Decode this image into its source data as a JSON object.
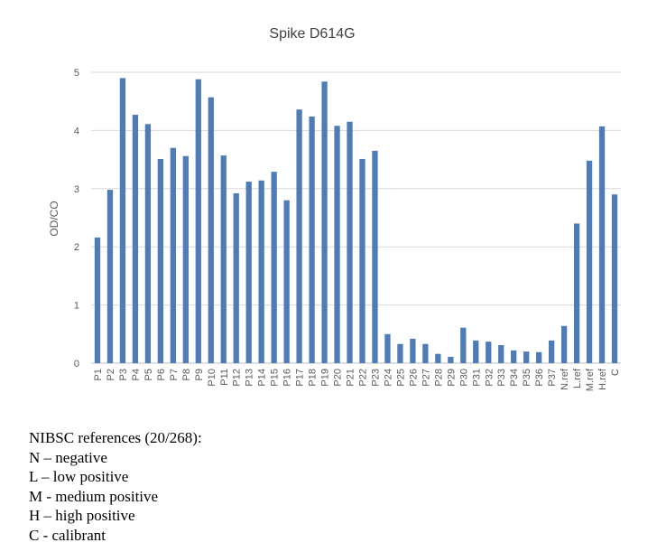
{
  "chart_data": {
    "type": "bar",
    "title": "Spike D614G",
    "xlabel": "",
    "ylabel": "OD/CO",
    "ylim": [
      0,
      5
    ],
    "yticks": [
      0,
      1,
      2,
      3,
      4,
      5
    ],
    "grid": true,
    "bar_color": "#4f7cb6",
    "categories": [
      "P1",
      "P2",
      "P3",
      "P4",
      "P5",
      "P6",
      "P7",
      "P8",
      "P9",
      "P10",
      "P11",
      "P12",
      "P13",
      "P14",
      "P15",
      "P16",
      "P17",
      "P18",
      "P19",
      "P20",
      "P21",
      "P22",
      "P23",
      "P24",
      "P25",
      "P26",
      "P27",
      "P28",
      "P29",
      "P30",
      "P31",
      "P32",
      "P33",
      "P34",
      "P35",
      "P36",
      "P37",
      "N.ref",
      "L.ref",
      "M.ref",
      "H.ref",
      "C"
    ],
    "values": [
      2.16,
      2.98,
      4.9,
      4.27,
      4.11,
      3.51,
      3.7,
      3.56,
      4.88,
      4.57,
      3.57,
      2.92,
      3.12,
      3.14,
      3.29,
      2.8,
      4.36,
      4.24,
      4.84,
      4.08,
      4.15,
      3.51,
      3.65,
      0.5,
      0.33,
      0.42,
      0.33,
      0.16,
      0.11,
      0.61,
      0.39,
      0.37,
      0.31,
      0.22,
      0.2,
      0.19,
      0.39,
      0.64,
      2.4,
      3.48,
      4.07,
      2.9
    ]
  },
  "notes": {
    "heading": "NIBSC references (20/268):",
    "lines": [
      "N – negative",
      "L – low positive",
      "M - medium positive",
      "H – high positive",
      "C - calibrant"
    ]
  }
}
